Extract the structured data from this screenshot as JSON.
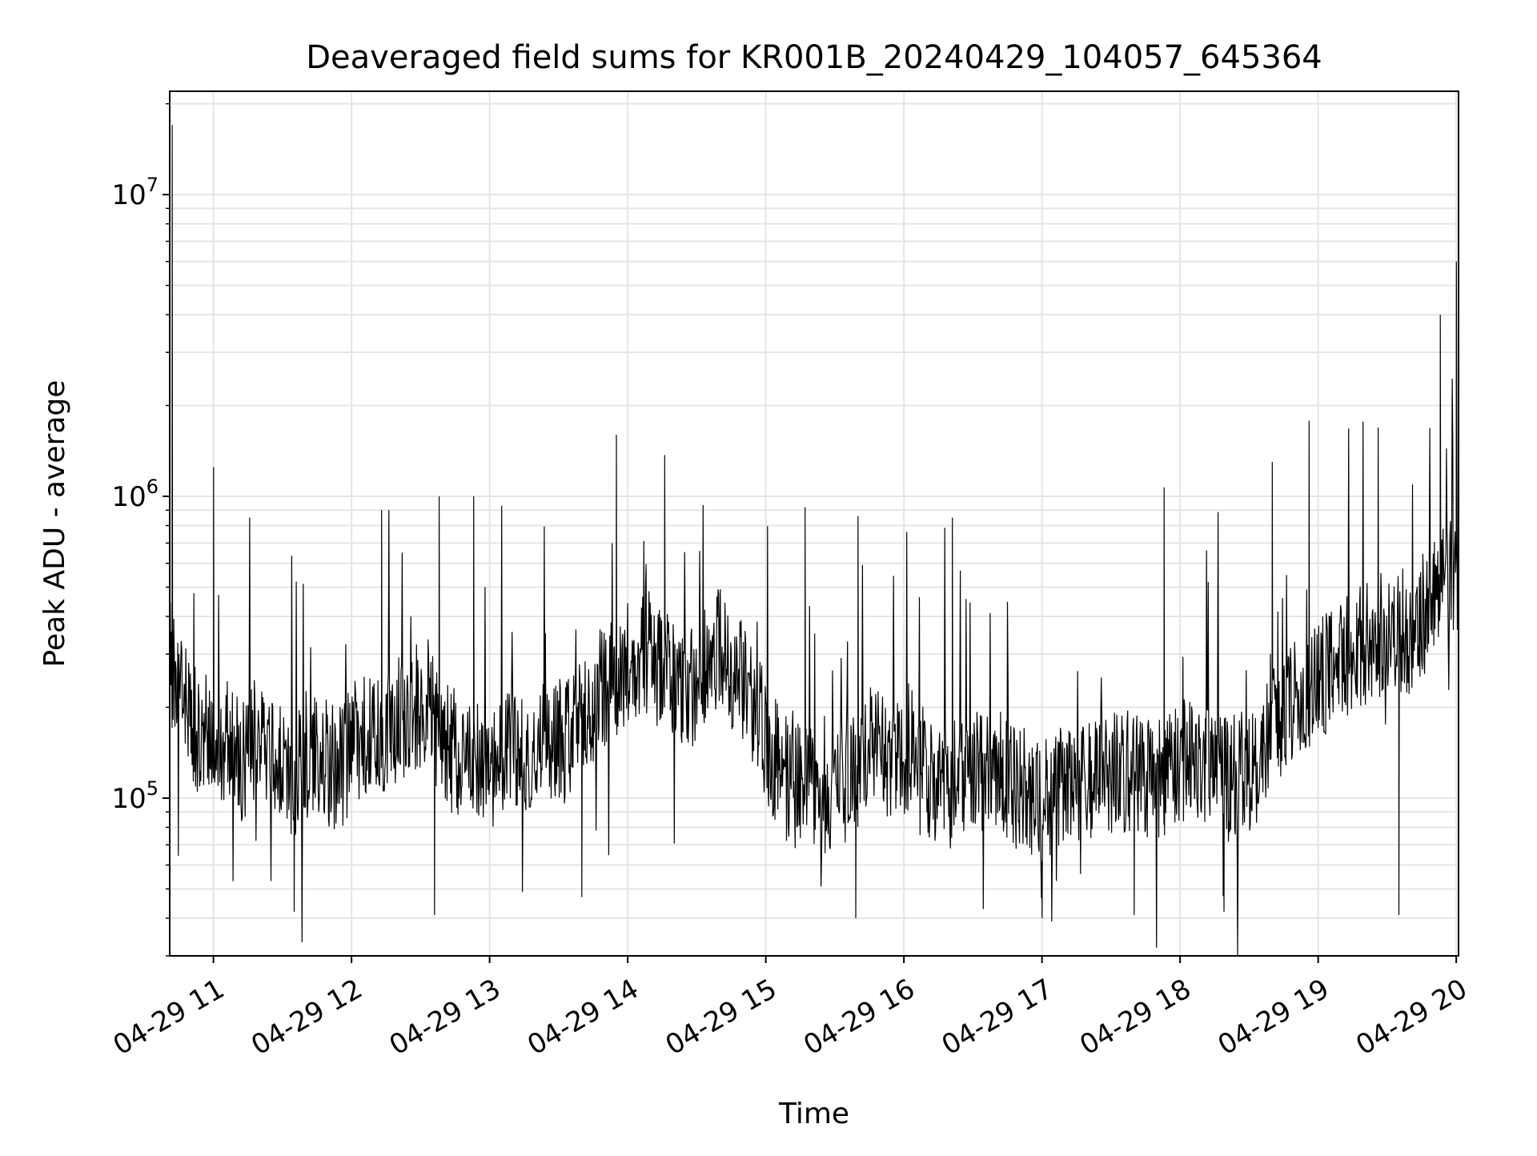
{
  "chart_data": {
    "type": "line",
    "title": "Deaveraged field sums for KR001B_20240429_104057_645364",
    "xlabel": "Time",
    "ylabel": "Peak ADU - average",
    "x_range": [
      "2024-04-29 10:41",
      "2024-04-29 20:01"
    ],
    "yscale": "log",
    "ylim": [
      30000,
      22000000
    ],
    "grid": true,
    "line_color": "#000000",
    "grid_color": "#e5e5e5",
    "x_ticks": [
      {
        "value": "2024-04-29 11:00",
        "label": "04-29 11"
      },
      {
        "value": "2024-04-29 12:00",
        "label": "04-29 12"
      },
      {
        "value": "2024-04-29 13:00",
        "label": "04-29 13"
      },
      {
        "value": "2024-04-29 14:00",
        "label": "04-29 14"
      },
      {
        "value": "2024-04-29 15:00",
        "label": "04-29 15"
      },
      {
        "value": "2024-04-29 16:00",
        "label": "04-29 16"
      },
      {
        "value": "2024-04-29 17:00",
        "label": "04-29 17"
      },
      {
        "value": "2024-04-29 18:00",
        "label": "04-29 18"
      },
      {
        "value": "2024-04-29 19:00",
        "label": "04-29 19"
      },
      {
        "value": "2024-04-29 20:00",
        "label": "04-29 20"
      }
    ],
    "y_ticks": [
      {
        "value": 100000,
        "base": "10",
        "exp": "5"
      },
      {
        "value": 1000000,
        "base": "10",
        "exp": "6"
      },
      {
        "value": 10000000,
        "base": "10",
        "exp": "7"
      }
    ],
    "series": [
      {
        "x": [
          "2024-04-29 10:41",
          "2024-04-29 10:47",
          "2024-04-29 10:53",
          "2024-04-29 11:00",
          "2024-04-29 11:07",
          "2024-04-29 11:13",
          "2024-04-29 11:20",
          "2024-04-29 11:27",
          "2024-04-29 11:34",
          "2024-04-29 11:41",
          "2024-04-29 11:47",
          "2024-04-29 11:54",
          "2024-04-29 12:00",
          "2024-04-29 12:07",
          "2024-04-29 12:13",
          "2024-04-29 12:20",
          "2024-04-29 12:27",
          "2024-04-29 12:33",
          "2024-04-29 12:40",
          "2024-04-29 12:47",
          "2024-04-29 12:53",
          "2024-04-29 13:00",
          "2024-04-29 13:07",
          "2024-04-29 13:13",
          "2024-04-29 13:20",
          "2024-04-29 13:27",
          "2024-04-29 13:33",
          "2024-04-29 13:40",
          "2024-04-29 13:47",
          "2024-04-29 13:53",
          "2024-04-29 14:00",
          "2024-04-29 14:07",
          "2024-04-29 14:13",
          "2024-04-29 14:20",
          "2024-04-29 14:27",
          "2024-04-29 14:33",
          "2024-04-29 14:40",
          "2024-04-29 14:47",
          "2024-04-29 14:53",
          "2024-04-29 15:00",
          "2024-04-29 15:07",
          "2024-04-29 15:13",
          "2024-04-29 15:20",
          "2024-04-29 15:27",
          "2024-04-29 15:33",
          "2024-04-29 15:40",
          "2024-04-29 15:47",
          "2024-04-29 15:53",
          "2024-04-29 16:00",
          "2024-04-29 16:07",
          "2024-04-29 16:13",
          "2024-04-29 16:20",
          "2024-04-29 16:27",
          "2024-04-29 16:33",
          "2024-04-29 16:40",
          "2024-04-29 16:47",
          "2024-04-29 16:53",
          "2024-04-29 17:00",
          "2024-04-29 17:07",
          "2024-04-29 17:13",
          "2024-04-29 17:20",
          "2024-04-29 17:27",
          "2024-04-29 17:33",
          "2024-04-29 17:40",
          "2024-04-29 17:47",
          "2024-04-29 17:53",
          "2024-04-29 18:00",
          "2024-04-29 18:07",
          "2024-04-29 18:13",
          "2024-04-29 18:20",
          "2024-04-29 18:27",
          "2024-04-29 18:33",
          "2024-04-29 18:40",
          "2024-04-29 18:47",
          "2024-04-29 18:53",
          "2024-04-29 19:00",
          "2024-04-29 19:07",
          "2024-04-29 19:13",
          "2024-04-29 19:20",
          "2024-04-29 19:27",
          "2024-04-29 19:33",
          "2024-04-29 19:40",
          "2024-04-29 19:47",
          "2024-04-29 19:53",
          "2024-04-29 20:00"
        ],
        "y": [
          280000,
          200000,
          170000,
          160000,
          150000,
          130000,
          170000,
          140000,
          120000,
          130000,
          140000,
          120000,
          150000,
          170000,
          160000,
          180000,
          200000,
          210000,
          150000,
          140000,
          130000,
          120000,
          140000,
          150000,
          140000,
          160000,
          150000,
          190000,
          220000,
          250000,
          280000,
          320000,
          270000,
          240000,
          230000,
          280000,
          310000,
          260000,
          220000,
          160000,
          120000,
          110000,
          105000,
          100000,
          110000,
          130000,
          150000,
          140000,
          130000,
          120000,
          115000,
          110000,
          120000,
          125000,
          130000,
          110000,
          105000,
          100000,
          105000,
          110000,
          115000,
          120000,
          125000,
          120000,
          115000,
          120000,
          130000,
          140000,
          125000,
          120000,
          115000,
          120000,
          170000,
          200000,
          230000,
          250000,
          270000,
          300000,
          320000,
          350000,
          380000,
          340000,
          420000,
          500000,
          550000
        ],
        "peaks": [
          {
            "x": "2024-04-29 10:42",
            "y": 17000000
          },
          {
            "x": "2024-04-29 11:00",
            "y": 1250000
          },
          {
            "x": "2024-04-29 12:13",
            "y": 900000
          },
          {
            "x": "2024-04-29 12:38",
            "y": 1000000
          },
          {
            "x": "2024-04-29 12:53",
            "y": 1000000
          },
          {
            "x": "2024-04-29 13:55",
            "y": 1600000
          },
          {
            "x": "2024-04-29 14:16",
            "y": 1370000
          },
          {
            "x": "2024-04-29 15:17",
            "y": 920000
          },
          {
            "x": "2024-04-29 15:40",
            "y": 860000
          },
          {
            "x": "2024-04-29 16:21",
            "y": 850000
          },
          {
            "x": "2024-04-29 17:53",
            "y": 1070000
          },
          {
            "x": "2024-04-29 18:40",
            "y": 1300000
          },
          {
            "x": "2024-04-29 18:56",
            "y": 1780000
          },
          {
            "x": "2024-04-29 19:26",
            "y": 1690000
          },
          {
            "x": "2024-04-29 19:53",
            "y": 4000000
          },
          {
            "x": "2024-04-29 20:00",
            "y": 6000000
          }
        ],
        "dips": [
          {
            "x": "2024-04-29 11:35",
            "y": 42000
          },
          {
            "x": "2024-04-29 12:36",
            "y": 41000
          },
          {
            "x": "2024-04-29 13:40",
            "y": 47000
          },
          {
            "x": "2024-04-29 15:39",
            "y": 40000
          },
          {
            "x": "2024-04-29 17:00",
            "y": 40000
          },
          {
            "x": "2024-04-29 17:40",
            "y": 41000
          },
          {
            "x": "2024-04-29 18:19",
            "y": 42000
          },
          {
            "x": "2024-04-29 19:35",
            "y": 41000
          }
        ]
      }
    ]
  }
}
